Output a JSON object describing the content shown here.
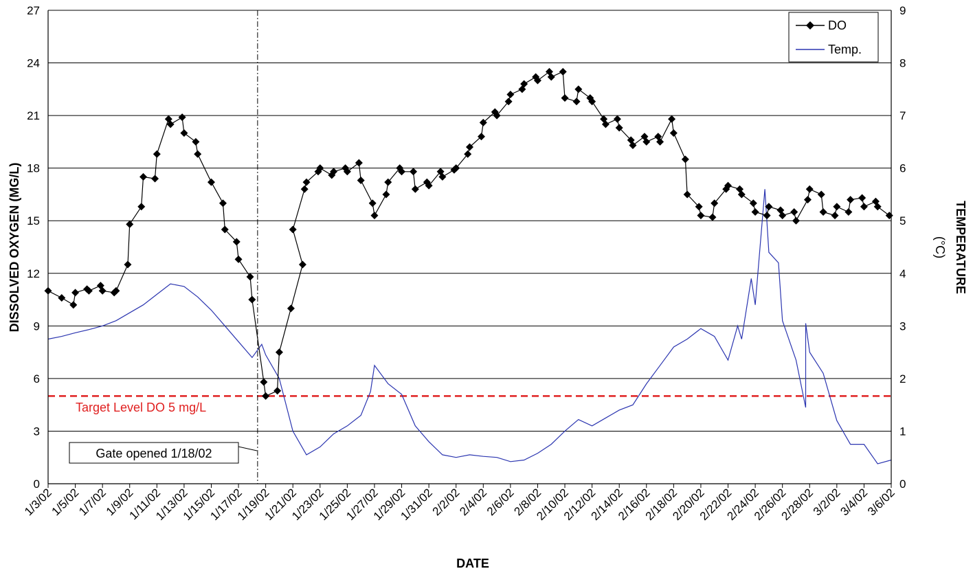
{
  "chart_data": {
    "type": "line",
    "xlabel": "DATE",
    "ylabel": "DISSOLVED OXYGEN (MG/L)",
    "y2label_line1": "TEMPERATURE",
    "y2label_line2": "(°C)",
    "xlim": [
      "1/3/02",
      "3/6/02"
    ],
    "ylim": [
      0,
      27
    ],
    "y2lim": [
      0,
      9
    ],
    "y_ticks": [
      "0",
      "3",
      "6",
      "9",
      "12",
      "15",
      "18",
      "21",
      "24",
      "27"
    ],
    "y2_ticks": [
      "0",
      "1",
      "2",
      "3",
      "4",
      "5",
      "6",
      "7",
      "8",
      "9"
    ],
    "x_ticks": [
      "1/3/02",
      "1/5/02",
      "1/7/02",
      "1/9/02",
      "1/11/02",
      "1/13/02",
      "1/15/02",
      "1/17/02",
      "1/19/02",
      "1/21/02",
      "1/23/02",
      "1/25/02",
      "1/27/02",
      "1/29/02",
      "1/31/02",
      "2/2/02",
      "2/4/02",
      "2/6/02",
      "2/8/02",
      "2/10/02",
      "2/12/02",
      "2/14/02",
      "2/16/02",
      "2/18/02",
      "2/20/02",
      "2/22/02",
      "2/24/02",
      "2/26/02",
      "2/28/02",
      "3/2/02",
      "3/4/02",
      "3/6/02"
    ],
    "grid": "horizontal",
    "legend_position": "top-right",
    "series": [
      {
        "name": "DO",
        "axis": "left",
        "color": "#000000",
        "marker": "diamond",
        "points": [
          [
            "1/3/02",
            11.0
          ],
          [
            "1/4/02",
            10.6
          ],
          [
            "1/4/02",
            10.2
          ],
          [
            "1/5/02",
            10.9
          ],
          [
            "1/5/02",
            11.1
          ],
          [
            "1/6/02",
            11.0
          ],
          [
            "1/6/02",
            11.3
          ],
          [
            "1/7/02",
            11.0
          ],
          [
            "1/7/02",
            10.9
          ],
          [
            "1/8/02",
            11.0
          ],
          [
            "1/8/02",
            12.5
          ],
          [
            "1/9/02",
            14.8
          ],
          [
            "1/9/02",
            15.8
          ],
          [
            "1/10/02",
            17.5
          ],
          [
            "1/10/02",
            17.4
          ],
          [
            "1/11/02",
            18.8
          ],
          [
            "1/11/02",
            20.8
          ],
          [
            "1/12/02",
            20.5
          ],
          [
            "1/12/02",
            20.9
          ],
          [
            "1/13/02",
            20.0
          ],
          [
            "1/13/02",
            19.5
          ],
          [
            "1/14/02",
            18.8
          ],
          [
            "1/15/02",
            17.2
          ],
          [
            "1/15/02",
            16.0
          ],
          [
            "1/16/02",
            14.5
          ],
          [
            "1/16/02",
            13.8
          ],
          [
            "1/17/02",
            12.8
          ],
          [
            "1/17/02",
            11.8
          ],
          [
            "1/18/02",
            10.5
          ],
          [
            "1/18/02",
            5.8
          ],
          [
            "1/19/02",
            5.0
          ],
          [
            "1/19/02",
            5.3
          ],
          [
            "1/20/02",
            7.5
          ],
          [
            "1/20/02",
            10.0
          ],
          [
            "1/20/02",
            12.5
          ],
          [
            "1/21/02",
            14.5
          ],
          [
            "1/21/02",
            16.8
          ],
          [
            "1/22/02",
            17.2
          ],
          [
            "1/22/02",
            17.8
          ],
          [
            "1/23/02",
            18.0
          ],
          [
            "1/23/02",
            17.6
          ],
          [
            "1/24/02",
            17.8
          ],
          [
            "1/24/02",
            18.0
          ],
          [
            "1/25/02",
            17.8
          ],
          [
            "1/25/02",
            18.3
          ],
          [
            "1/26/02",
            17.3
          ],
          [
            "1/26/02",
            16.0
          ],
          [
            "1/27/02",
            15.3
          ],
          [
            "1/27/02",
            16.5
          ],
          [
            "1/28/02",
            17.2
          ],
          [
            "1/28/02",
            18.0
          ],
          [
            "1/29/02",
            17.8
          ],
          [
            "1/29/02",
            17.8
          ],
          [
            "1/30/02",
            16.8
          ],
          [
            "1/30/02",
            17.2
          ],
          [
            "1/31/02",
            17.0
          ],
          [
            "1/31/02",
            17.8
          ],
          [
            "2/1/02",
            17.5
          ],
          [
            "2/1/02",
            17.9
          ],
          [
            "2/2/02",
            18.0
          ],
          [
            "2/2/02",
            18.8
          ],
          [
            "2/3/02",
            19.2
          ],
          [
            "2/3/02",
            19.8
          ],
          [
            "2/4/02",
            20.6
          ],
          [
            "2/4/02",
            21.2
          ],
          [
            "2/5/02",
            21.0
          ],
          [
            "2/5/02",
            21.8
          ],
          [
            "2/6/02",
            22.2
          ],
          [
            "2/6/02",
            22.5
          ],
          [
            "2/7/02",
            22.8
          ],
          [
            "2/7/02",
            23.2
          ],
          [
            "2/8/02",
            23.0
          ],
          [
            "2/8/02",
            23.5
          ],
          [
            "2/9/02",
            23.2
          ],
          [
            "2/9/02",
            23.5
          ],
          [
            "2/10/02",
            22.0
          ],
          [
            "2/10/02",
            21.8
          ],
          [
            "2/11/02",
            22.5
          ],
          [
            "2/11/02",
            22.0
          ],
          [
            "2/12/02",
            21.8
          ],
          [
            "2/12/02",
            20.8
          ],
          [
            "2/13/02",
            20.5
          ],
          [
            "2/13/02",
            20.8
          ],
          [
            "2/14/02",
            20.3
          ],
          [
            "2/14/02",
            19.6
          ],
          [
            "2/15/02",
            19.3
          ],
          [
            "2/15/02",
            19.8
          ],
          [
            "2/16/02",
            19.5
          ],
          [
            "2/16/02",
            19.8
          ],
          [
            "2/17/02",
            19.5
          ],
          [
            "2/17/02",
            20.8
          ],
          [
            "2/18/02",
            20.0
          ],
          [
            "2/18/02",
            18.5
          ],
          [
            "2/19/02",
            16.5
          ],
          [
            "2/19/02",
            15.8
          ],
          [
            "2/20/02",
            15.3
          ],
          [
            "2/20/02",
            15.2
          ],
          [
            "2/21/02",
            16.0
          ],
          [
            "2/21/02",
            16.8
          ],
          [
            "2/22/02",
            17.0
          ],
          [
            "2/22/02",
            16.8
          ],
          [
            "2/23/02",
            16.5
          ],
          [
            "2/23/02",
            16.0
          ],
          [
            "2/24/02",
            15.5
          ],
          [
            "2/24/02",
            15.3
          ],
          [
            "2/25/02",
            15.8
          ],
          [
            "2/25/02",
            15.6
          ],
          [
            "2/26/02",
            15.3
          ],
          [
            "2/26/02",
            15.5
          ],
          [
            "2/27/02",
            15.0
          ],
          [
            "2/27/02",
            16.2
          ],
          [
            "2/28/02",
            16.8
          ],
          [
            "2/28/02",
            16.5
          ],
          [
            "3/1/02",
            15.5
          ],
          [
            "3/1/02",
            15.3
          ],
          [
            "3/2/02",
            15.8
          ],
          [
            "3/2/02",
            15.5
          ],
          [
            "3/3/02",
            16.2
          ],
          [
            "3/3/02",
            16.3
          ],
          [
            "3/4/02",
            15.8
          ],
          [
            "3/4/02",
            16.1
          ],
          [
            "3/5/02",
            15.8
          ],
          [
            "3/5/02",
            15.3
          ]
        ]
      },
      {
        "name": "Temp.",
        "axis": "right",
        "color": "#2b35b0",
        "marker": "none",
        "points": [
          [
            "1/3/02",
            2.75
          ],
          [
            "1/4/02",
            2.8
          ],
          [
            "1/5/02",
            2.87
          ],
          [
            "1/6/02",
            2.93
          ],
          [
            "1/7/02",
            3.0
          ],
          [
            "1/8/02",
            3.1
          ],
          [
            "1/9/02",
            3.25
          ],
          [
            "1/10/02",
            3.4
          ],
          [
            "1/11/02",
            3.6
          ],
          [
            "1/12/02",
            3.8
          ],
          [
            "1/13/02",
            3.75
          ],
          [
            "1/14/02",
            3.55
          ],
          [
            "1/15/02",
            3.3
          ],
          [
            "1/16/02",
            3.0
          ],
          [
            "1/17/02",
            2.7
          ],
          [
            "1/18/02",
            2.4
          ],
          [
            "1/18/02",
            2.65
          ],
          [
            "1/19/02",
            2.45
          ],
          [
            "1/20/02",
            2.0
          ],
          [
            "1/21/02",
            1.0
          ],
          [
            "1/22/02",
            0.55
          ],
          [
            "1/23/02",
            0.7
          ],
          [
            "1/24/02",
            0.95
          ],
          [
            "1/25/02",
            1.1
          ],
          [
            "1/26/02",
            1.3
          ],
          [
            "1/26/02",
            1.75
          ],
          [
            "1/27/02",
            2.25
          ],
          [
            "1/28/02",
            1.9
          ],
          [
            "1/29/02",
            1.7
          ],
          [
            "1/30/02",
            1.1
          ],
          [
            "1/31/02",
            0.8
          ],
          [
            "2/1/02",
            0.55
          ],
          [
            "2/2/02",
            0.5
          ],
          [
            "2/3/02",
            0.55
          ],
          [
            "2/4/02",
            0.52
          ],
          [
            "2/5/02",
            0.5
          ],
          [
            "2/6/02",
            0.42
          ],
          [
            "2/7/02",
            0.45
          ],
          [
            "2/8/02",
            0.58
          ],
          [
            "2/9/02",
            0.75
          ],
          [
            "2/10/02",
            1.0
          ],
          [
            "2/11/02",
            1.22
          ],
          [
            "2/12/02",
            1.1
          ],
          [
            "2/13/02",
            1.25
          ],
          [
            "2/14/02",
            1.4
          ],
          [
            "2/15/02",
            1.5
          ],
          [
            "2/16/02",
            1.9
          ],
          [
            "2/17/02",
            2.25
          ],
          [
            "2/18/02",
            2.6
          ],
          [
            "2/19/02",
            2.75
          ],
          [
            "2/20/02",
            2.95
          ],
          [
            "2/21/02",
            2.8
          ],
          [
            "2/22/02",
            2.35
          ],
          [
            "2/22/02",
            3.0
          ],
          [
            "2/23/02",
            2.75
          ],
          [
            "2/23/02",
            3.9
          ],
          [
            "2/24/02",
            3.4
          ],
          [
            "2/24/02",
            5.6
          ],
          [
            "2/25/02",
            4.4
          ],
          [
            "2/25/02",
            4.2
          ],
          [
            "2/26/02",
            3.1
          ],
          [
            "2/27/02",
            2.35
          ],
          [
            "2/27/02",
            1.45
          ],
          [
            "2/27/02",
            3.05
          ],
          [
            "2/28/02",
            2.5
          ],
          [
            "3/1/02",
            2.1
          ],
          [
            "3/2/02",
            1.2
          ],
          [
            "3/3/02",
            0.75
          ],
          [
            "3/4/02",
            0.75
          ],
          [
            "3/5/02",
            0.38
          ],
          [
            "3/6/02",
            0.45
          ]
        ]
      }
    ],
    "reference_line": {
      "axis": "left",
      "value": 5,
      "label": "Target Level DO 5 mg/L",
      "color": "#e02020"
    },
    "event_line": {
      "x": "1/18/02",
      "label": "Gate opened 1/18/02"
    }
  }
}
